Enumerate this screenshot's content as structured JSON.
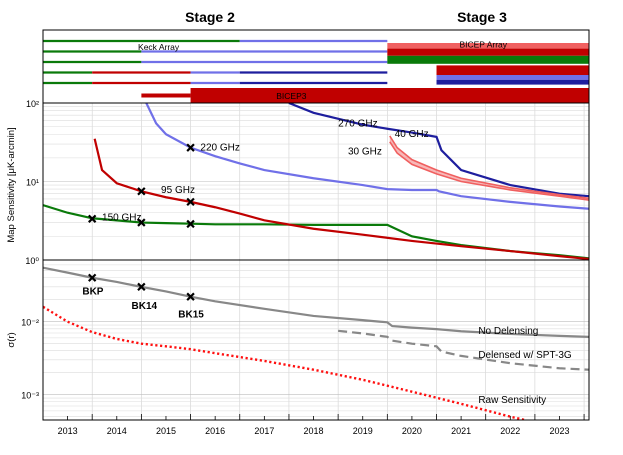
{
  "chart_data": {
    "type": "composite",
    "stages": [
      "Stage 2",
      "Stage 3"
    ],
    "x_years": [
      "2013",
      "2014",
      "2015",
      "2016",
      "2017",
      "2018",
      "2019",
      "2020",
      "2021",
      "2022",
      "2023"
    ],
    "xlim": [
      2012.5,
      2023.6
    ],
    "colors": {
      "green": "#0a7a0a",
      "red": "#c00000",
      "blue": "#1e1e9e",
      "lightblue": "#7070e8",
      "pink": "#f06060",
      "gray": "#888888",
      "redDotted": "#ff1010"
    },
    "timeline": {
      "labels": {
        "keck": "Keck Array",
        "bicep_array": "BICEP Array",
        "bicep3": "BICEP3"
      },
      "rows": [
        {
          "slot": 1,
          "segments": [
            {
              "start": 2012.5,
              "end": 2016.5,
              "color": "green"
            },
            {
              "start": 2016.5,
              "end": 2019.5,
              "color": "lightblue"
            }
          ]
        },
        {
          "slot": 2,
          "segments": [
            {
              "start": 2012.5,
              "end": 2014.5,
              "color": "green"
            },
            {
              "start": 2014.5,
              "end": 2019.5,
              "color": "lightblue"
            }
          ]
        },
        {
          "slot": 3,
          "segments": [
            {
              "start": 2012.5,
              "end": 2014.5,
              "color": "green"
            },
            {
              "start": 2014.5,
              "end": 2019.5,
              "color": "lightblue"
            }
          ]
        },
        {
          "slot": 4,
          "segments": [
            {
              "start": 2012.5,
              "end": 2013.5,
              "color": "green"
            },
            {
              "start": 2013.5,
              "end": 2015.5,
              "color": "red"
            },
            {
              "start": 2015.5,
              "end": 2016.5,
              "color": "lightblue"
            },
            {
              "start": 2016.5,
              "end": 2019.5,
              "color": "blue"
            }
          ]
        },
        {
          "slot": 5,
          "segments": [
            {
              "start": 2012.5,
              "end": 2013.5,
              "color": "green"
            },
            {
              "start": 2013.5,
              "end": 2015.5,
              "color": "red"
            },
            {
              "start": 2015.5,
              "end": 2016.5,
              "color": "lightblue"
            },
            {
              "start": 2016.5,
              "end": 2019.5,
              "color": "blue"
            }
          ]
        }
      ],
      "bicep_array_blocks": [
        {
          "start": 2019.5,
          "end": 2023.6,
          "rows": [
            1.0,
            1.7
          ],
          "color": "pink"
        },
        {
          "start": 2019.5,
          "end": 2023.6,
          "rows": [
            1.7,
            2.6
          ],
          "color": "red"
        },
        {
          "start": 2019.5,
          "end": 2023.6,
          "rows": [
            2.6,
            3.6
          ],
          "color": "green"
        },
        {
          "start": 2020.5,
          "end": 2023.6,
          "rows": [
            3.8,
            5.0
          ],
          "color": "red"
        },
        {
          "start": 2020.5,
          "end": 2023.6,
          "rows": [
            5.0,
            5.6
          ],
          "color": "lightblue"
        },
        {
          "start": 2020.5,
          "end": 2023.6,
          "rows": [
            5.6,
            6.2
          ],
          "color": "blue"
        }
      ],
      "bicep3": {
        "thin_start": 2014.5,
        "thick_start": 2015.5,
        "end": 2023.6
      }
    },
    "sensitivity_panel": {
      "ylabel": "Map Sensitivity [μK-arcmin]",
      "yscale": "log",
      "ylim": [
        1,
        100
      ],
      "ytick_labels": [
        "10⁰",
        "10¹",
        "10²"
      ],
      "series": [
        {
          "name": "150 GHz",
          "color": "green",
          "points": [
            [
              2012.5,
              5.0
            ],
            [
              2013.0,
              4.0
            ],
            [
              2013.5,
              3.4
            ],
            [
              2014.0,
              3.2
            ],
            [
              2014.5,
              3.0
            ],
            [
              2015.0,
              2.95
            ],
            [
              2015.5,
              2.9
            ],
            [
              2016.0,
              2.85
            ],
            [
              2017.0,
              2.85
            ],
            [
              2018.0,
              2.8
            ],
            [
              2019.0,
              2.8
            ],
            [
              2019.5,
              2.8
            ],
            [
              2020.0,
              2.0
            ],
            [
              2020.5,
              1.75
            ],
            [
              2021.0,
              1.55
            ],
            [
              2022.0,
              1.3
            ],
            [
              2023.0,
              1.15
            ],
            [
              2023.6,
              1.05
            ]
          ]
        },
        {
          "name": "95 GHz",
          "color": "red",
          "points": [
            [
              2013.55,
              35
            ],
            [
              2013.7,
              14
            ],
            [
              2014.0,
              9.5
            ],
            [
              2014.5,
              7.5
            ],
            [
              2015.0,
              6.3
            ],
            [
              2015.5,
              5.5
            ],
            [
              2016.0,
              4.7
            ],
            [
              2016.5,
              3.9
            ],
            [
              2017.0,
              3.2
            ],
            [
              2018.0,
              2.5
            ],
            [
              2019.0,
              2.1
            ],
            [
              2020.0,
              1.75
            ],
            [
              2021.0,
              1.5
            ],
            [
              2022.0,
              1.3
            ],
            [
              2023.0,
              1.12
            ],
            [
              2023.6,
              1.03
            ]
          ]
        },
        {
          "name": "220 GHz",
          "color": "lightblue",
          "points": [
            [
              2014.6,
              100
            ],
            [
              2014.8,
              55
            ],
            [
              2015.0,
              40
            ],
            [
              2015.5,
              27
            ],
            [
              2016.0,
              21
            ],
            [
              2016.5,
              17
            ],
            [
              2017.0,
              14
            ],
            [
              2018.0,
              11
            ],
            [
              2019.0,
              9
            ],
            [
              2019.5,
              8
            ],
            [
              2020.0,
              7.8
            ],
            [
              2020.5,
              7.8
            ],
            [
              2020.55,
              7.5
            ],
            [
              2021.0,
              6.5
            ],
            [
              2022.0,
              5.5
            ],
            [
              2023.0,
              4.8
            ],
            [
              2023.6,
              4.5
            ]
          ]
        },
        {
          "name": "270 GHz",
          "color": "blue",
          "points": [
            [
              2017.5,
              100
            ],
            [
              2018.0,
              75
            ],
            [
              2019.0,
              53
            ],
            [
              2019.5,
              47
            ],
            [
              2020.0,
              42
            ],
            [
              2020.5,
              37
            ],
            [
              2020.6,
              25
            ],
            [
              2021.0,
              14
            ],
            [
              2022.0,
              9
            ],
            [
              2023.0,
              7.0
            ],
            [
              2023.6,
              6.5
            ]
          ]
        },
        {
          "name": "30 GHz",
          "color": "pink",
          "points": [
            [
              2019.55,
              32
            ],
            [
              2019.7,
              23
            ],
            [
              2020.0,
              16.5
            ],
            [
              2020.5,
              12.5
            ],
            [
              2021.0,
              10
            ],
            [
              2022.0,
              7.8
            ],
            [
              2023.0,
              6.5
            ],
            [
              2023.6,
              5.8
            ]
          ]
        },
        {
          "name": "40 GHz",
          "color": "pink",
          "points": [
            [
              2019.55,
              38
            ],
            [
              2019.7,
              27
            ],
            [
              2020.0,
              19
            ],
            [
              2020.5,
              14
            ],
            [
              2021.0,
              11
            ],
            [
              2022.0,
              8.3
            ],
            [
              2023.0,
              6.8
            ],
            [
              2023.6,
              6.1
            ]
          ]
        }
      ],
      "markers": [
        {
          "x": 2013.5,
          "y": 3.35
        },
        {
          "x": 2014.5,
          "y": 3.0
        },
        {
          "x": 2015.5,
          "y": 2.88
        },
        {
          "x": 2014.5,
          "y": 7.5
        },
        {
          "x": 2015.5,
          "y": 5.5
        },
        {
          "x": 2015.5,
          "y": 27
        }
      ],
      "labels": [
        {
          "text": "150 GHz",
          "x": 2013.7,
          "y": 3.5
        },
        {
          "text": "95 GHz",
          "x": 2014.9,
          "y": 7.8
        },
        {
          "text": "220 GHz",
          "x": 2015.7,
          "y": 27
        },
        {
          "text": "270 GHz",
          "x": 2018.5,
          "y": 55
        },
        {
          "text": "40 GHz",
          "x": 2019.65,
          "y": 40
        },
        {
          "text": "30 GHz",
          "x": 2018.7,
          "y": 24
        }
      ]
    },
    "sigma_panel": {
      "ylabel": "σ(r)",
      "yscale": "log",
      "ylim": [
        0.00045,
        0.07
      ],
      "ytick_labels": [
        "10⁻³",
        "10⁻²"
      ],
      "series": [
        {
          "name": "No Delensing",
          "color": "gray",
          "style": "solid",
          "points": [
            [
              2012.5,
              0.055
            ],
            [
              2013.0,
              0.047
            ],
            [
              2013.5,
              0.04
            ],
            [
              2014.0,
              0.035
            ],
            [
              2014.5,
              0.03
            ],
            [
              2015.0,
              0.026
            ],
            [
              2015.5,
              0.022
            ],
            [
              2016.0,
              0.019
            ],
            [
              2017.0,
              0.015
            ],
            [
              2018.0,
              0.012
            ],
            [
              2019.0,
              0.0105
            ],
            [
              2019.5,
              0.0098
            ],
            [
              2019.6,
              0.0087
            ],
            [
              2020.0,
              0.0083
            ],
            [
              2020.5,
              0.0079
            ],
            [
              2021.0,
              0.0074
            ],
            [
              2022.0,
              0.0068
            ],
            [
              2023.0,
              0.0064
            ],
            [
              2023.6,
              0.0062
            ]
          ]
        },
        {
          "name": "Delensed w/ SPT-3G",
          "color": "gray",
          "style": "dashed",
          "points": [
            [
              2018.5,
              0.0075
            ],
            [
              2019.0,
              0.0069
            ],
            [
              2019.5,
              0.0062
            ],
            [
              2019.6,
              0.0055
            ],
            [
              2020.0,
              0.005
            ],
            [
              2020.5,
              0.0046
            ],
            [
              2020.6,
              0.0039
            ],
            [
              2021.0,
              0.0034
            ],
            [
              2022.0,
              0.0027
            ],
            [
              2023.0,
              0.0023
            ],
            [
              2023.6,
              0.0022
            ]
          ]
        },
        {
          "name": "Raw Sensitivity",
          "color": "redDotted",
          "style": "dotted",
          "points": [
            [
              2012.5,
              0.016
            ],
            [
              2013.0,
              0.01
            ],
            [
              2013.5,
              0.0072
            ],
            [
              2014.0,
              0.0058
            ],
            [
              2014.5,
              0.005
            ],
            [
              2015.0,
              0.0046
            ],
            [
              2015.5,
              0.0042
            ],
            [
              2016.0,
              0.0037
            ],
            [
              2017.0,
              0.0029
            ],
            [
              2018.0,
              0.0022
            ],
            [
              2019.0,
              0.0016
            ],
            [
              2020.0,
              0.0011
            ],
            [
              2021.0,
              0.00075
            ],
            [
              2022.0,
              0.0005
            ],
            [
              2022.3,
              0.00045
            ]
          ]
        }
      ],
      "markers": [
        {
          "x": 2013.5,
          "y": 0.04
        },
        {
          "x": 2014.5,
          "y": 0.03
        },
        {
          "x": 2015.5,
          "y": 0.022
        }
      ],
      "labels": [
        {
          "text": "BKP",
          "x": 2013.3,
          "y": 0.026,
          "bold": true
        },
        {
          "text": "BK14",
          "x": 2014.3,
          "y": 0.0165,
          "bold": true
        },
        {
          "text": "BK15",
          "x": 2015.25,
          "y": 0.0125,
          "bold": true
        },
        {
          "text": "No Delensing",
          "x": 2021.35,
          "y": 0.0075,
          "bold": false
        },
        {
          "text": "Delensed w/ SPT-3G",
          "x": 2021.35,
          "y": 0.0035,
          "bold": false
        },
        {
          "text": "Raw Sensitivity",
          "x": 2021.35,
          "y": 0.00085,
          "bold": false
        }
      ]
    }
  }
}
